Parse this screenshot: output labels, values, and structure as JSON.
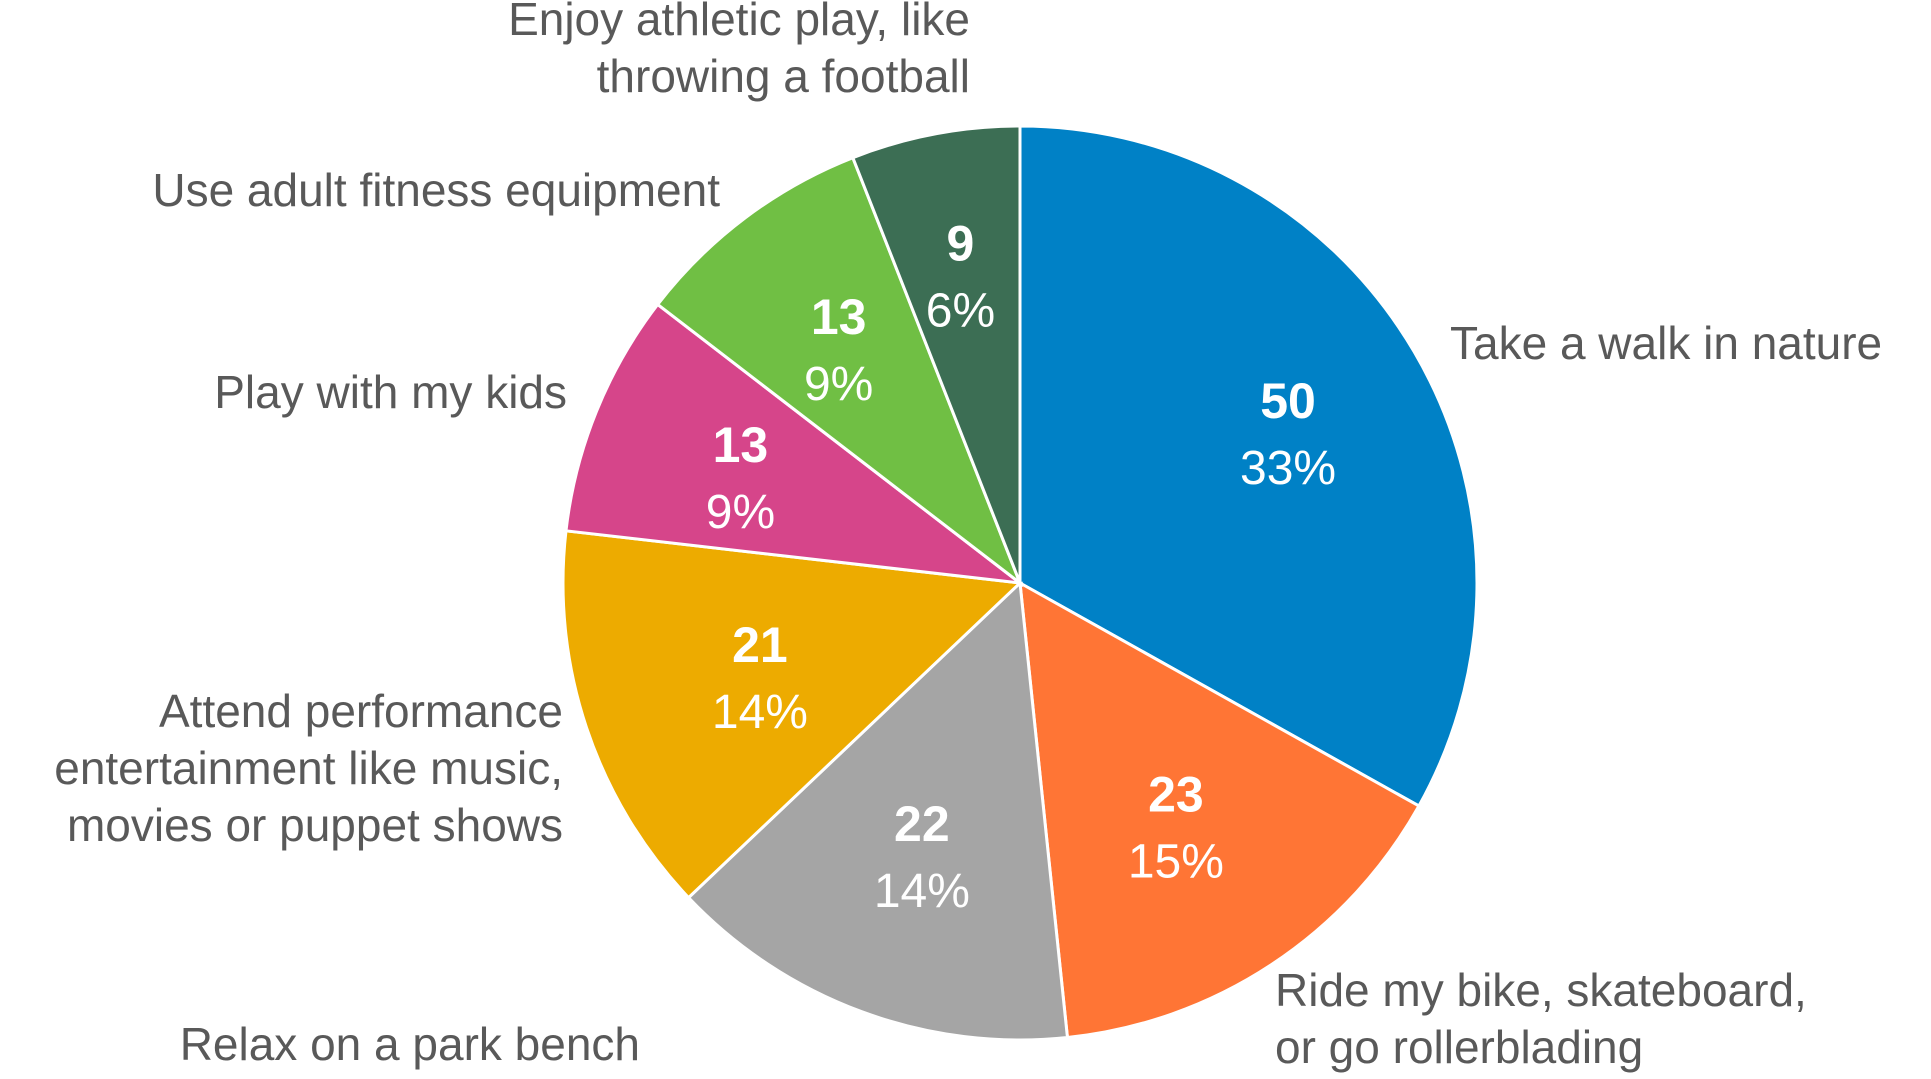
{
  "chart_data": {
    "type": "pie",
    "title": "",
    "categories": [
      "Take a walk in nature",
      "Ride my bike, skateboard, or go rollerblading",
      "Relax on a park bench",
      "Attend performance entertainment like music, movies or puppet shows",
      "Play with my kids",
      "Use adult fitness equipment",
      "Enjoy athletic play, like throwing a football"
    ],
    "label_lines": [
      [
        "Take a walk in nature"
      ],
      [
        "Ride my bike, skateboard,",
        "or go rollerblading"
      ],
      [
        "Relax on a park bench"
      ],
      [
        "Attend performance",
        "entertainment like music,",
        "movies or puppet shows"
      ],
      [
        "Play with my kids"
      ],
      [
        "Use adult fitness equipment"
      ],
      [
        "Enjoy athletic play, like",
        "throwing a football"
      ]
    ],
    "values": [
      50,
      23,
      22,
      21,
      13,
      13,
      9
    ],
    "value_labels": [
      "50",
      "23",
      "22",
      "21",
      "13",
      "13",
      "9"
    ],
    "percent_labels": [
      "33%",
      "15%",
      "14%",
      "14%",
      "9%",
      "9%",
      "6%"
    ],
    "colors": [
      "#0081C6",
      "#FF7535",
      "#A5A5A5",
      "#EDAB00",
      "#D6458A",
      "#70BF44",
      "#3C6E54"
    ],
    "start_angle": "12 o'clock",
    "direction": "clockwise",
    "legend": "none"
  }
}
